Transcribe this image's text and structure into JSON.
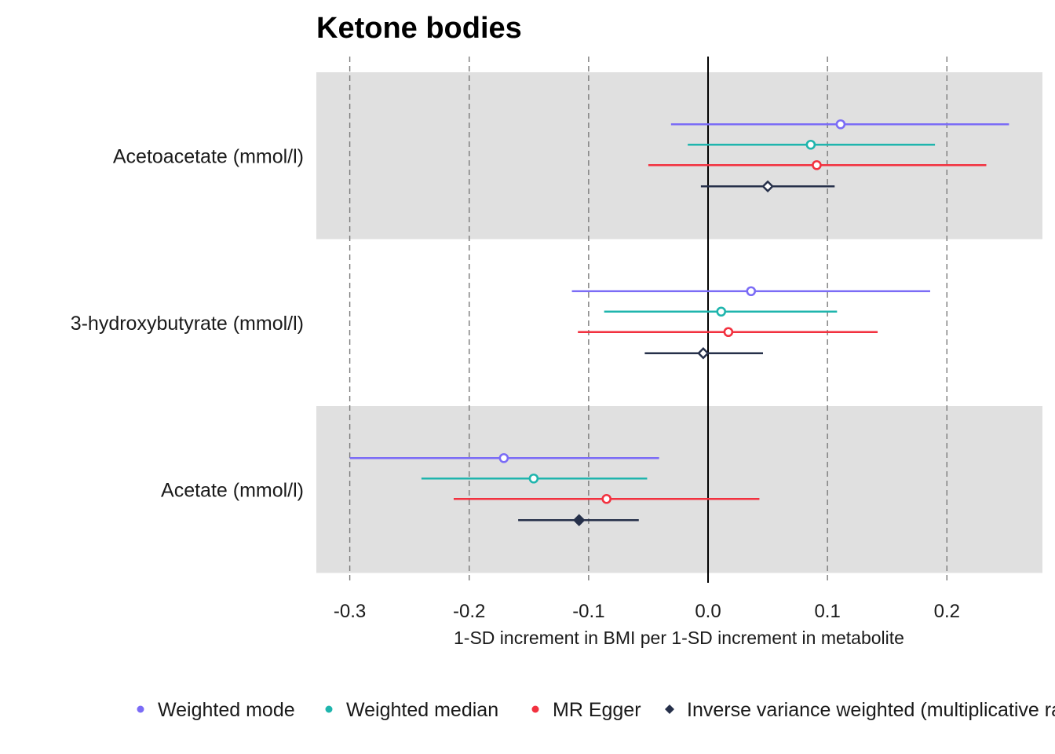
{
  "chart_data": {
    "type": "forest",
    "title": "Ketone bodies",
    "xlabel": "1-SD increment in BMI per 1-SD increment in metabolite",
    "ylabel": "",
    "xlim": [
      -0.328,
      0.28
    ],
    "xticks": [
      -0.3,
      -0.2,
      -0.1,
      0.0,
      0.1,
      0.2
    ],
    "xtick_labels": [
      "-0.3",
      "-0.2",
      "-0.1",
      "0.0",
      "0.1",
      "0.2"
    ],
    "grid": "dashed vertical at major ticks",
    "reference_line": 0,
    "legend_position": "bottom",
    "categories": [
      "Acetoacetate (mmol/l)",
      "3-hydroxybutyrate (mmol/l)",
      "Acetate (mmol/l)"
    ],
    "band_shading": [
      true,
      false,
      true
    ],
    "series": [
      {
        "name": "Weighted mode",
        "color": "#7B6CF6",
        "marker": "circle",
        "estimate": [
          0.111,
          0.036,
          -0.171
        ],
        "ci_low": [
          -0.031,
          -0.114,
          -0.3
        ],
        "ci_high": [
          0.252,
          0.186,
          -0.041
        ]
      },
      {
        "name": "Weighted median",
        "color": "#1FB5AD",
        "marker": "circle",
        "estimate": [
          0.086,
          0.011,
          -0.146
        ],
        "ci_low": [
          -0.017,
          -0.087,
          -0.24
        ],
        "ci_high": [
          0.19,
          0.108,
          -0.051
        ]
      },
      {
        "name": "MR Egger",
        "color": "#F2313F",
        "marker": "circle",
        "estimate": [
          0.091,
          0.017,
          -0.085
        ],
        "ci_low": [
          -0.05,
          -0.109,
          -0.213
        ],
        "ci_high": [
          0.233,
          0.142,
          0.043
        ]
      },
      {
        "name": "Inverse variance weighted (multiplicative random effects)",
        "color": "#26304A",
        "marker": "diamond",
        "estimate": [
          0.05,
          -0.004,
          -0.108
        ],
        "ci_low": [
          -0.006,
          -0.053,
          -0.159
        ],
        "ci_high": [
          0.106,
          0.046,
          -0.058
        ],
        "filled": [
          false,
          false,
          true
        ]
      }
    ]
  }
}
